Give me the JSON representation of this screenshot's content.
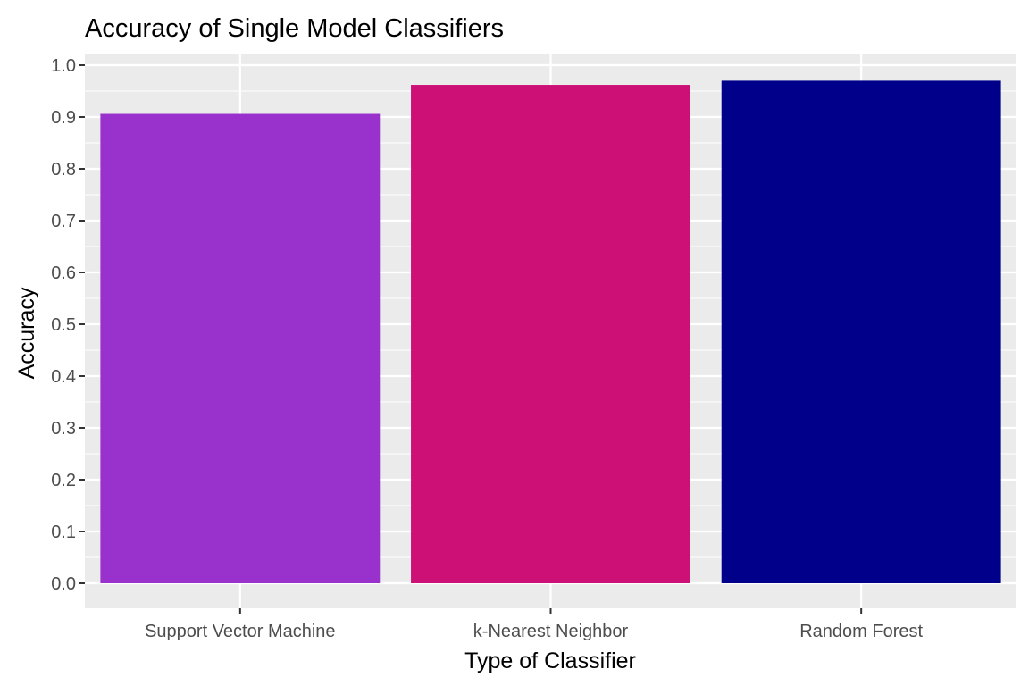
{
  "chart_data": {
    "type": "bar",
    "title": "Accuracy of Single Model Classifiers",
    "xlabel": "Type of Classifier",
    "ylabel": "Accuracy",
    "categories": [
      "Support Vector Machine",
      "k-Nearest Neighbor",
      "Random Forest"
    ],
    "values": [
      0.906,
      0.962,
      0.97
    ],
    "colors": [
      "#9932CC",
      "#CD1076",
      "#00008B"
    ],
    "ylim": [
      0,
      1.0
    ],
    "yticks": [
      "0.0",
      "0.1",
      "0.2",
      "0.3",
      "0.4",
      "0.5",
      "0.6",
      "0.7",
      "0.8",
      "0.9",
      "1.0"
    ],
    "grid": true,
    "legend": "none",
    "panel_background": "#EBEBEB",
    "grid_color": "#FFFFFF"
  }
}
